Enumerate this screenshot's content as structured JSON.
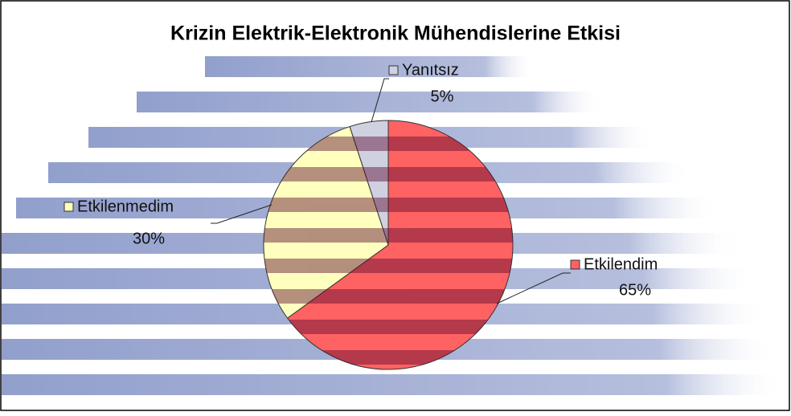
{
  "chart_data": {
    "type": "pie",
    "title": "Krizin Elektrik-Elektronik Mühendislerine Etkisi",
    "categories": [
      "Etkilendim",
      "Etkilenmedim",
      "Yanıtsız"
    ],
    "values": [
      65,
      30,
      5
    ],
    "value_labels": [
      "65%",
      "30%",
      "5%"
    ],
    "colors": [
      "#ff6262",
      "#ffffbe",
      "#cfd0e0"
    ]
  }
}
